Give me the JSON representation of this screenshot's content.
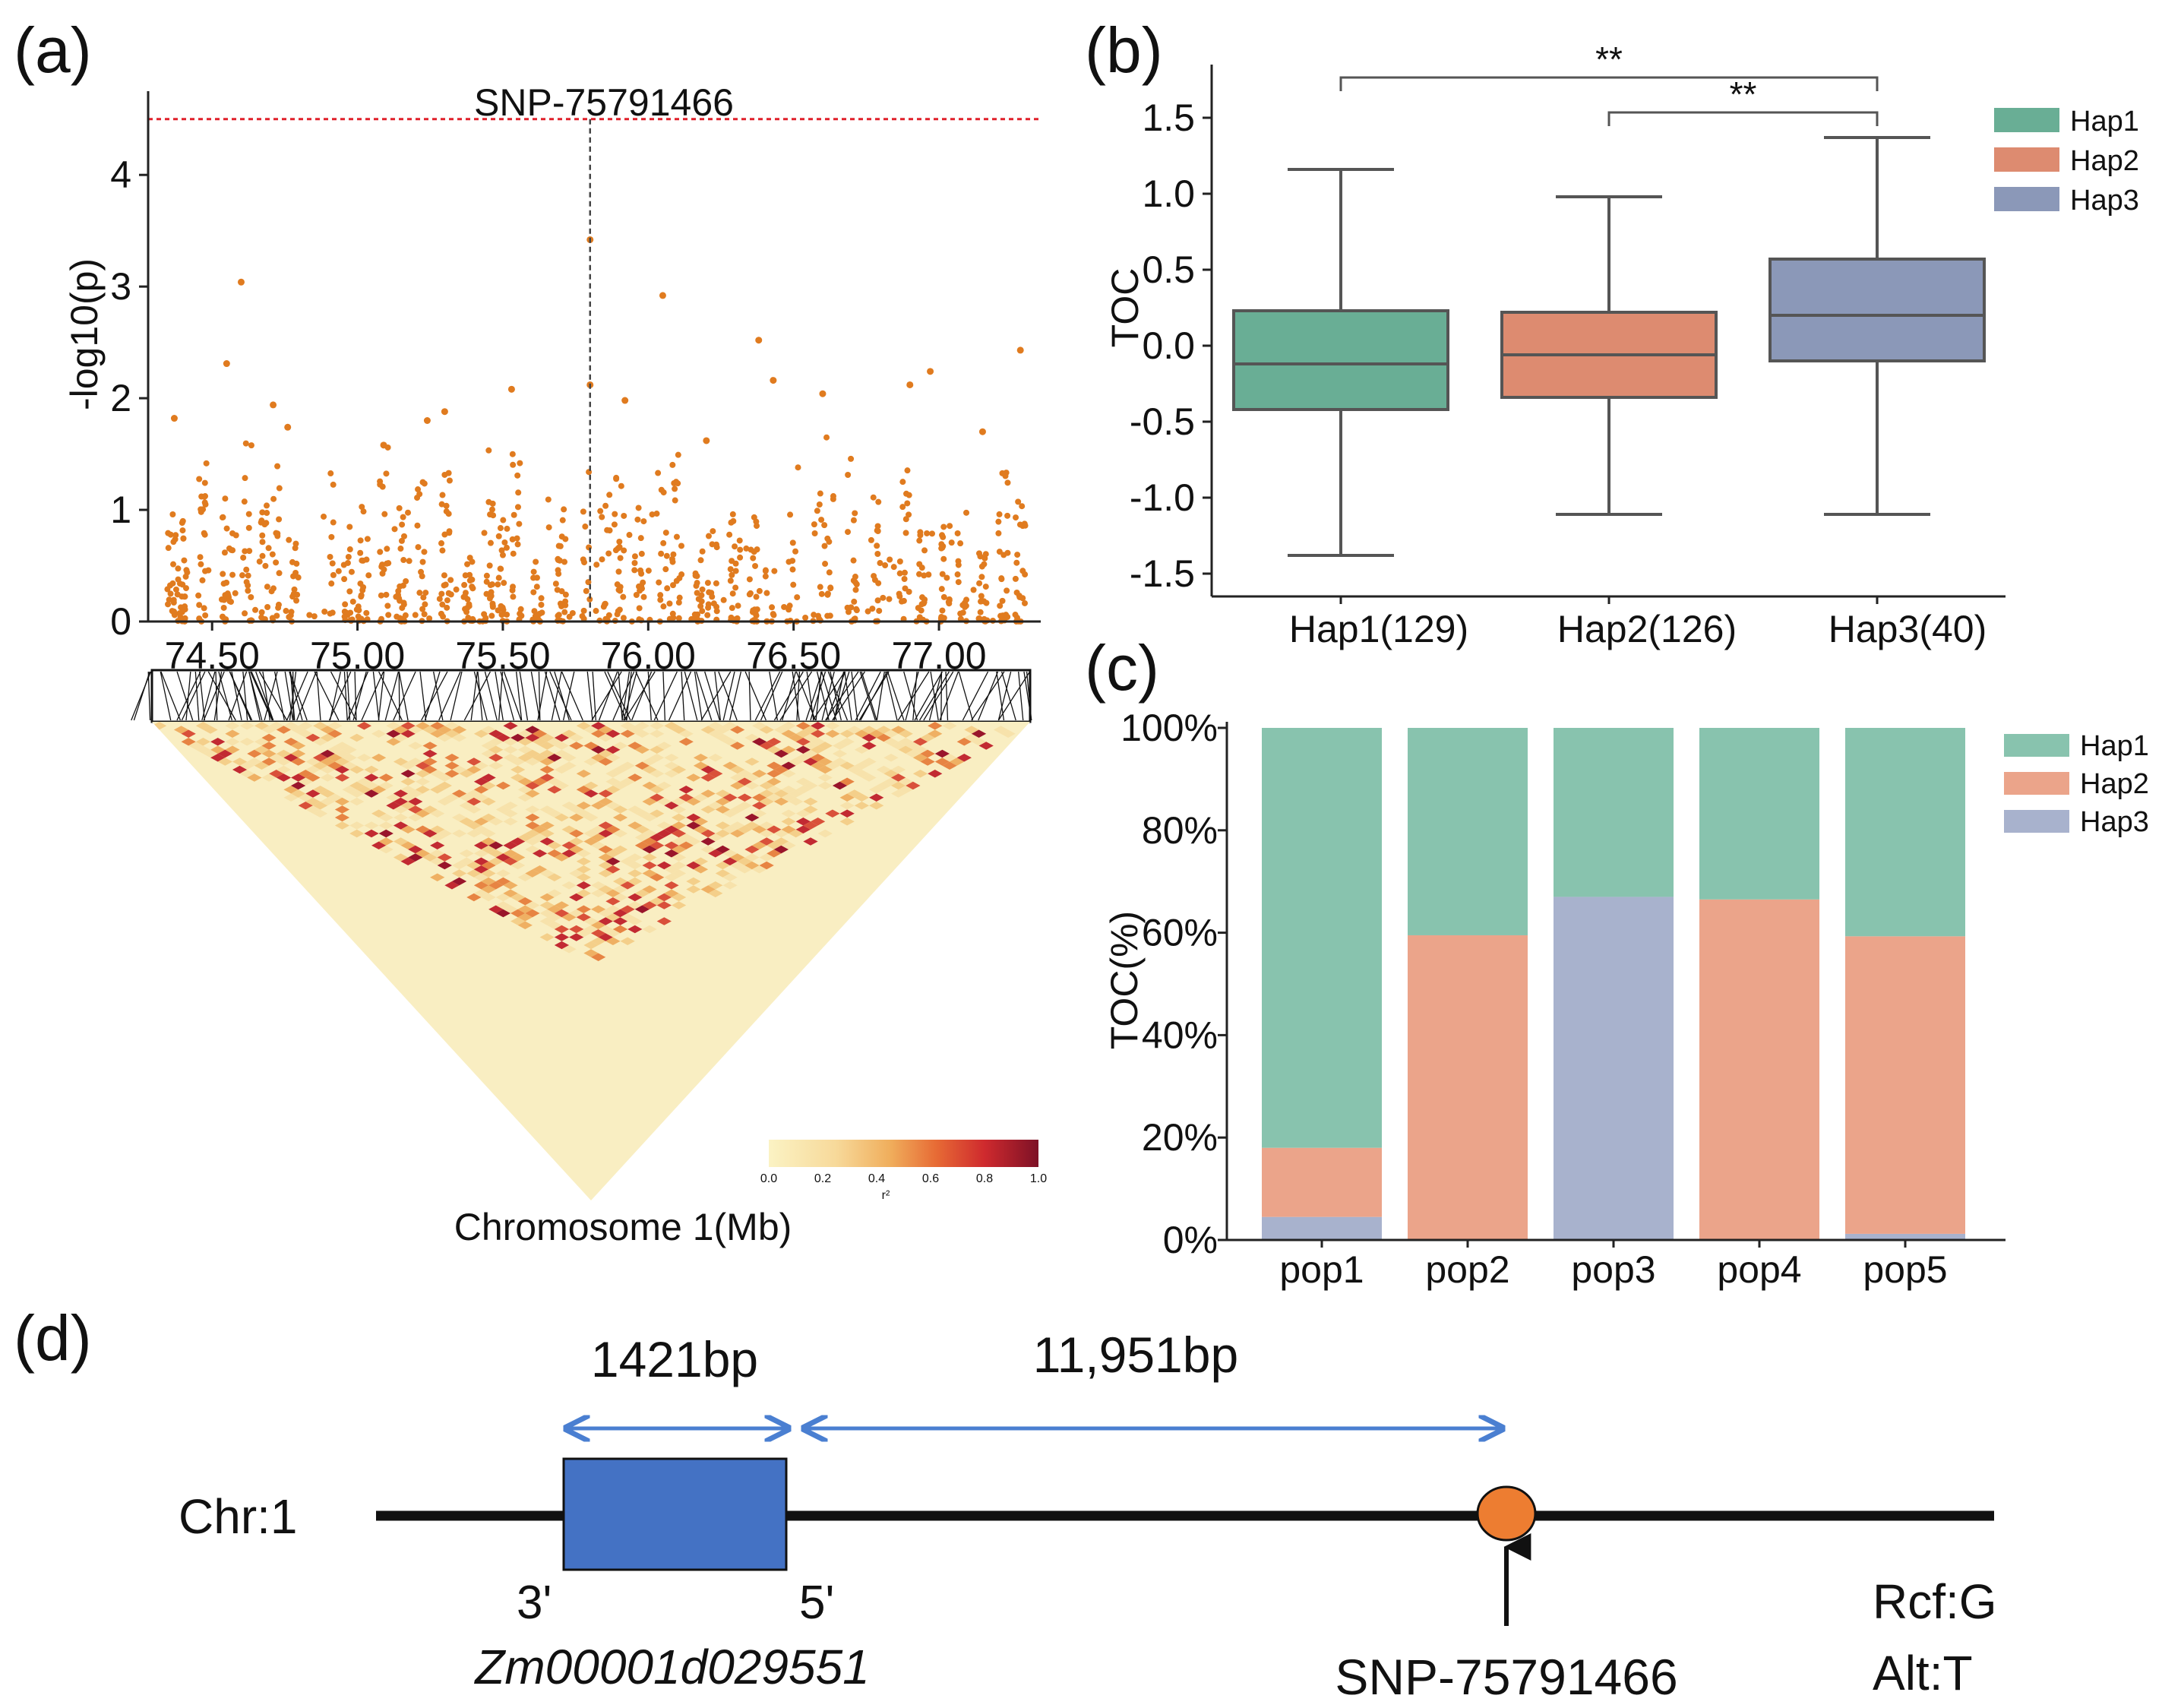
{
  "panel_labels": [
    "(a)",
    "(b)",
    "(c)",
    "(d)"
  ],
  "colors": {
    "hap1": "#69ae95",
    "hap2": "#dd8b70",
    "hap3": "#8b98b8",
    "hap1_bar": "#88c3ae",
    "hap2_bar": "#eba48a",
    "hap3_bar": "#a8b2cd",
    "scatter": "#e07b1f",
    "threshold": "#e0202a",
    "gene_box": "#4472c4",
    "snp_circle": "#ed7d31",
    "arrow_blue": "#4a7fd1"
  },
  "chart_data": [
    {
      "id": "a",
      "type": "scatter",
      "title": "SNP-75791466",
      "ylabel": "-log10(p)",
      "xlabel": "Chromosome 1(Mb)",
      "xlim": [
        74.28,
        77.35
      ],
      "ylim": [
        0,
        4.75
      ],
      "xticks": [
        "74.50",
        "75.00",
        "75.50",
        "76.00",
        "76.50",
        "77.00"
      ],
      "xtick_values": [
        74.5,
        75.0,
        75.5,
        76.0,
        76.5,
        77.0
      ],
      "yticks": [
        "0",
        "1",
        "2",
        "3",
        "4"
      ],
      "ytick_values": [
        0,
        1,
        2,
        3,
        4
      ],
      "threshold_y": 4.5,
      "lead_snp_x": 75.8,
      "highlight_points": [
        {
          "x": 75.8,
          "y": 3.42
        },
        {
          "x": 74.6,
          "y": 3.04
        },
        {
          "x": 76.05,
          "y": 2.92
        },
        {
          "x": 76.38,
          "y": 2.52
        },
        {
          "x": 77.28,
          "y": 2.43
        },
        {
          "x": 74.55,
          "y": 2.31
        },
        {
          "x": 76.97,
          "y": 2.24
        },
        {
          "x": 76.43,
          "y": 2.16
        },
        {
          "x": 75.8,
          "y": 2.12
        },
        {
          "x": 76.9,
          "y": 2.12
        },
        {
          "x": 75.53,
          "y": 2.08
        },
        {
          "x": 76.6,
          "y": 2.04
        },
        {
          "x": 75.92,
          "y": 1.98
        },
        {
          "x": 74.71,
          "y": 1.94
        },
        {
          "x": 75.3,
          "y": 1.88
        },
        {
          "x": 74.37,
          "y": 1.82
        },
        {
          "x": 75.24,
          "y": 1.8
        },
        {
          "x": 74.76,
          "y": 1.74
        },
        {
          "x": 77.15,
          "y": 1.7
        },
        {
          "x": 75.09,
          "y": 1.58
        },
        {
          "x": 76.2,
          "y": 1.62
        }
      ],
      "legend_label": "r²",
      "colorbar_ticks": [
        "0.0",
        "0.2",
        "0.4",
        "0.6",
        "0.8",
        "1.0"
      ]
    },
    {
      "id": "b",
      "type": "box",
      "ylabel": "TOC",
      "ylim": [
        -1.65,
        1.85
      ],
      "yticks": [
        "-1.5",
        "-1.0",
        "-0.5",
        "0.0",
        "0.5",
        "1.0",
        "1.5"
      ],
      "ytick_values": [
        -1.5,
        -1.0,
        -0.5,
        0.0,
        0.5,
        1.0,
        1.5
      ],
      "categories": [
        "Hap1(129)",
        "Hap2(126)",
        "Hap3(40)"
      ],
      "boxes": [
        {
          "name": "Hap1",
          "whisker_low": -1.38,
          "q1": -0.42,
          "median": -0.12,
          "q3": 0.23,
          "whisker_high": 1.16
        },
        {
          "name": "Hap2",
          "whisker_low": -1.11,
          "q1": -0.34,
          "median": -0.06,
          "q3": 0.22,
          "whisker_high": 0.98
        },
        {
          "name": "Hap3",
          "whisker_low": -1.11,
          "q1": -0.1,
          "median": 0.2,
          "q3": 0.57,
          "whisker_high": 1.37
        }
      ],
      "significance": [
        {
          "from": 0,
          "to": 2,
          "label": "**"
        },
        {
          "from": 1,
          "to": 2,
          "label": "**"
        }
      ],
      "legend": [
        "Hap1",
        "Hap2",
        "Hap3"
      ]
    },
    {
      "id": "c",
      "type": "bar",
      "stacked": true,
      "ylabel": "TOC(%)",
      "ylim": [
        0,
        100
      ],
      "yticks": [
        "0%",
        "20%",
        "40%",
        "60%",
        "80%",
        "100%"
      ],
      "ytick_values": [
        0,
        20,
        40,
        60,
        80,
        100
      ],
      "categories": [
        "pop1",
        "pop2",
        "pop3",
        "pop4",
        "pop5"
      ],
      "series": [
        {
          "name": "Hap3",
          "values": [
            4.5,
            0,
            67,
            0,
            1.2
          ]
        },
        {
          "name": "Hap2",
          "values": [
            13.5,
            59.5,
            0,
            66.5,
            58.1
          ]
        },
        {
          "name": "Hap1",
          "values": [
            82,
            40.5,
            33,
            33.5,
            40.7
          ]
        }
      ],
      "legend": [
        "Hap1",
        "Hap2",
        "Hap3"
      ]
    }
  ],
  "gene_diagram": {
    "chr_label": "Chr:1",
    "dist1": "1421bp",
    "dist2": "11,951bp",
    "end3": "3'",
    "end5": "5'",
    "gene_name": "Zm00001d029551",
    "snp_name": "SNP-75791466",
    "ref": "Rcf:G",
    "alt": "Alt:T"
  }
}
